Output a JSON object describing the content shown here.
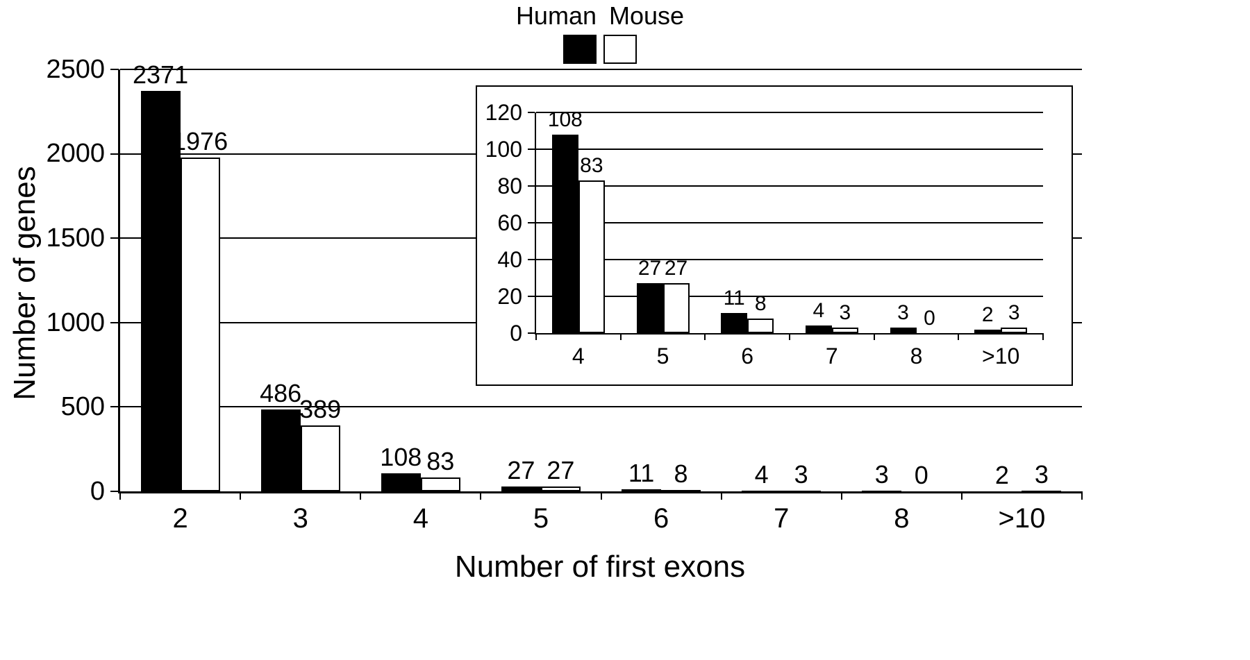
{
  "chart_data": {
    "type": "bar",
    "title": "",
    "xlabel": "Number of first exons",
    "ylabel": "Number of genes",
    "categories": [
      "2",
      "3",
      "4",
      "5",
      "6",
      "7",
      "8",
      ">10"
    ],
    "series": [
      {
        "name": "Human",
        "color": "#000000",
        "values": [
          2371,
          486,
          108,
          27,
          11,
          4,
          3,
          2
        ]
      },
      {
        "name": "Mouse",
        "color": "#ffffff",
        "values": [
          1976,
          389,
          83,
          27,
          8,
          3,
          0,
          3
        ]
      }
    ],
    "ylim": [
      0,
      2500
    ],
    "yticks": [
      0,
      500,
      1000,
      1500,
      2000,
      2500
    ],
    "grid": true,
    "bar_border": "#000000",
    "legend_position": "top",
    "inset": {
      "type": "bar",
      "categories": [
        "4",
        "5",
        "6",
        "7",
        "8",
        ">10"
      ],
      "series": [
        {
          "name": "Human",
          "color": "#000000",
          "values": [
            108,
            27,
            11,
            4,
            3,
            2
          ]
        },
        {
          "name": "Mouse",
          "color": "#ffffff",
          "values": [
            83,
            27,
            8,
            3,
            0,
            3
          ]
        }
      ],
      "ylim": [
        0,
        120
      ],
      "yticks": [
        0,
        20,
        40,
        60,
        80,
        100,
        120
      ],
      "grid": true
    }
  },
  "legend": {
    "items": [
      {
        "label": "Human",
        "color": "#000000"
      },
      {
        "label": "Mouse",
        "color": "#ffffff"
      }
    ]
  }
}
